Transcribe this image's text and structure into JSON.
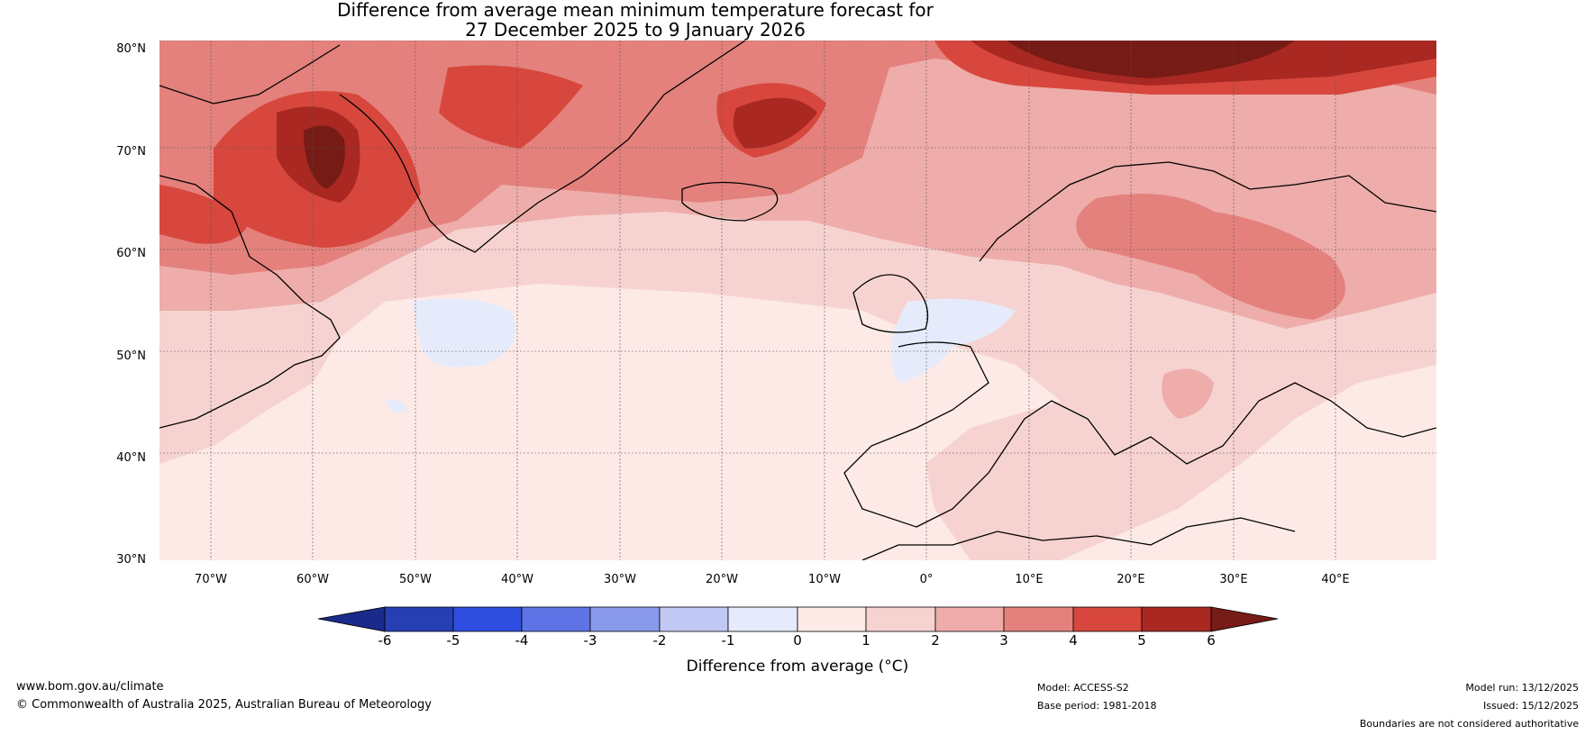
{
  "title": {
    "line1": "Difference from average mean minimum temperature forecast for",
    "line2": "27 December 2025 to 9 January 2026"
  },
  "map": {
    "lat_labels": [
      "80°N",
      "70°N",
      "60°N",
      "50°N",
      "40°N",
      "30°N"
    ],
    "lon_labels": [
      "70°W",
      "60°W",
      "50°W",
      "40°W",
      "30°W",
      "20°W",
      "10°W",
      "0°",
      "10°E",
      "20°E",
      "30°E",
      "40°E"
    ],
    "region": "North Atlantic and Europe"
  },
  "colorbar": {
    "title": "Difference from average (°C)",
    "ticks": [
      "-6",
      "-5",
      "-4",
      "-3",
      "-2",
      "-1",
      "0",
      "1",
      "2",
      "3",
      "4",
      "5",
      "6"
    ],
    "colors": {
      "under": "#1a2a8a",
      "b_6_5": "#2640b4",
      "b_5_4": "#2f4ee0",
      "b_4_3": "#5e74e6",
      "b_3_2": "#8a9aeb",
      "b_2_1": "#c0c8f3",
      "b_1_0": "#e6ebfb",
      "b0_1": "#fdeae7",
      "b1_2": "#f6d3d1",
      "b2_3": "#eeadaa",
      "b3_4": "#e4817c",
      "b4_5": "#d7473d",
      "b5_6": "#a92821",
      "over": "#761b16"
    }
  },
  "footer": {
    "url": "www.bom.gov.au/climate",
    "copyright": "© Commonwealth of Australia 2025, Australian Bureau of Meteorology",
    "model": "Model: ACCESS-S2",
    "base_period": "Base period: 1981-2018",
    "model_run": "Model run: 13/12/2025",
    "issued": "Issued: 15/12/2025",
    "disclaimer": "Boundaries are not considered authoritative"
  }
}
